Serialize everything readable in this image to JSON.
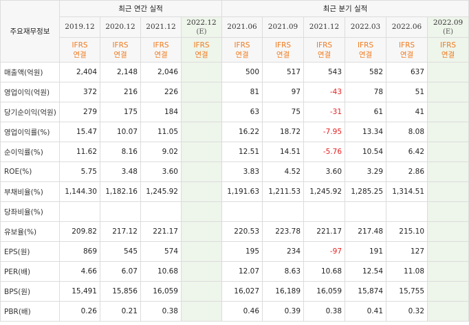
{
  "table_title": "주요재무정보",
  "annual_group": "최근 연간 실적",
  "quarter_group": "최근 분기 실적",
  "annual_periods": [
    {
      "label": "2019.12",
      "est": ""
    },
    {
      "label": "2020.12",
      "est": ""
    },
    {
      "label": "2021.12",
      "est": ""
    },
    {
      "label": "2022.12",
      "est": "(E)"
    }
  ],
  "quarter_periods": [
    {
      "label": "2021.06",
      "est": ""
    },
    {
      "label": "2021.09",
      "est": ""
    },
    {
      "label": "2021.12",
      "est": ""
    },
    {
      "label": "2022.03",
      "est": ""
    },
    {
      "label": "2022.06",
      "est": ""
    },
    {
      "label": "2022.09",
      "est": "(E)"
    }
  ],
  "ifrs_line1": "IFRS",
  "ifrs_line2": "연결",
  "rows": [
    {
      "label": "매출액(억원)",
      "annual": [
        "2,404",
        "2,148",
        "2,046",
        ""
      ],
      "quarter": [
        "500",
        "517",
        "543",
        "582",
        "637",
        ""
      ]
    },
    {
      "label": "영업이익(억원)",
      "annual": [
        "372",
        "216",
        "226",
        ""
      ],
      "quarter": [
        "81",
        "97",
        "-43",
        "78",
        "51",
        ""
      ]
    },
    {
      "label": "당기순이익(억원)",
      "annual": [
        "279",
        "175",
        "184",
        ""
      ],
      "quarter": [
        "63",
        "75",
        "-31",
        "61",
        "41",
        ""
      ]
    },
    {
      "label": "영업이익률(%)",
      "annual": [
        "15.47",
        "10.07",
        "11.05",
        ""
      ],
      "quarter": [
        "16.22",
        "18.72",
        "-7.95",
        "13.34",
        "8.08",
        ""
      ]
    },
    {
      "label": "순이익률(%)",
      "annual": [
        "11.62",
        "8.16",
        "9.02",
        ""
      ],
      "quarter": [
        "12.51",
        "14.51",
        "-5.76",
        "10.54",
        "6.42",
        ""
      ]
    },
    {
      "label": "ROE(%)",
      "annual": [
        "5.75",
        "3.48",
        "3.60",
        ""
      ],
      "quarter": [
        "3.83",
        "4.52",
        "3.60",
        "3.29",
        "2.86",
        ""
      ]
    },
    {
      "label": "부채비율(%)",
      "annual": [
        "1,144.30",
        "1,182.16",
        "1,245.92",
        ""
      ],
      "quarter": [
        "1,191.63",
        "1,211.53",
        "1,245.92",
        "1,285.25",
        "1,314.51",
        ""
      ]
    },
    {
      "label": "당좌비율(%)",
      "annual": [
        "",
        "",
        "",
        ""
      ],
      "quarter": [
        "",
        "",
        "",
        "",
        "",
        ""
      ]
    },
    {
      "label": "유보율(%)",
      "annual": [
        "209.82",
        "217.12",
        "221.17",
        ""
      ],
      "quarter": [
        "220.53",
        "223.78",
        "221.17",
        "217.48",
        "215.10",
        ""
      ]
    },
    {
      "label": "EPS(원)",
      "annual": [
        "869",
        "545",
        "574",
        ""
      ],
      "quarter": [
        "195",
        "234",
        "-97",
        "191",
        "127",
        ""
      ]
    },
    {
      "label": "PER(배)",
      "annual": [
        "4.66",
        "6.07",
        "10.68",
        ""
      ],
      "quarter": [
        "12.07",
        "8.63",
        "10.68",
        "12.54",
        "11.08",
        ""
      ]
    },
    {
      "label": "BPS(원)",
      "annual": [
        "15,491",
        "15,856",
        "16,059",
        ""
      ],
      "quarter": [
        "16,027",
        "16,189",
        "16,059",
        "15,874",
        "15,755",
        ""
      ]
    },
    {
      "label": "PBR(배)",
      "annual": [
        "0.26",
        "0.21",
        "0.38",
        ""
      ],
      "quarter": [
        "0.46",
        "0.39",
        "0.38",
        "0.41",
        "0.32",
        ""
      ]
    }
  ],
  "colors": {
    "negative": "#e61e1e",
    "ifrs": "#f07a1e",
    "estimate_bg": "#eef5ea"
  }
}
